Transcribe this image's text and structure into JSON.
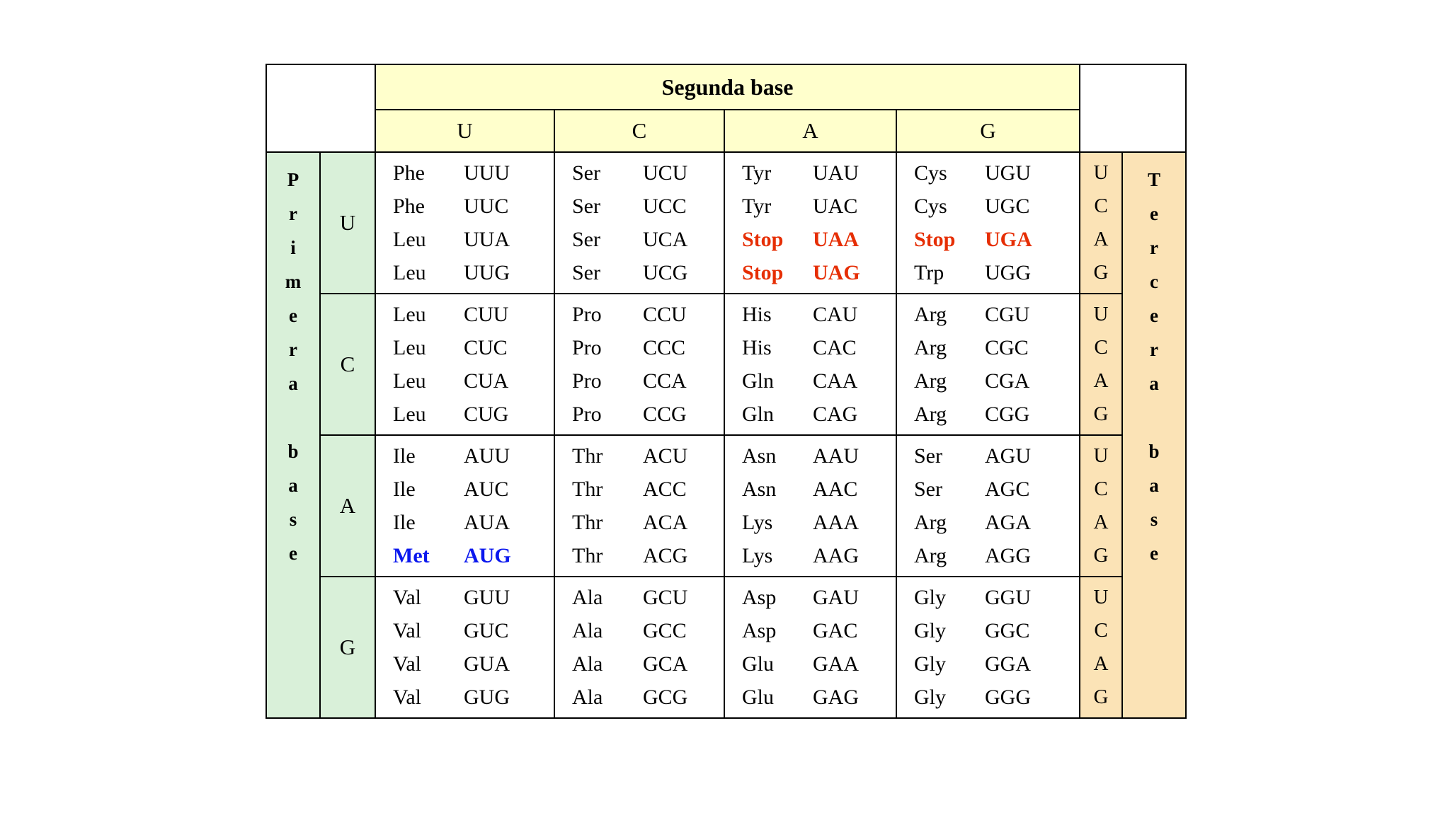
{
  "colors": {
    "header_bg": "#ffffcc",
    "first_base_bg": "#d9f0d9",
    "third_base_bg": "#fbe3b6",
    "stop": "#e62e04",
    "start": "#0b18ee",
    "border": "#000000",
    "text": "#000000"
  },
  "chart_data": {
    "type": "table",
    "column_group_label": "Segunda base",
    "row_group_label": "Primera base",
    "third_base_group_label": "Tercera base",
    "column_headers": [
      "U",
      "C",
      "A",
      "G"
    ],
    "row_headers": [
      "U",
      "C",
      "A",
      "G"
    ],
    "third_base_letters": [
      "U",
      "C",
      "A",
      "G"
    ],
    "rows": [
      {
        "first_base": "U",
        "cells": [
          {
            "second_base": "U",
            "lines": [
              {
                "aa": "Phe",
                "codon": "UUU",
                "style": "normal"
              },
              {
                "aa": "Phe",
                "codon": "UUC",
                "style": "normal"
              },
              {
                "aa": "Leu",
                "codon": "UUA",
                "style": "normal"
              },
              {
                "aa": "Leu",
                "codon": "UUG",
                "style": "normal"
              }
            ]
          },
          {
            "second_base": "C",
            "lines": [
              {
                "aa": "Ser",
                "codon": "UCU",
                "style": "normal"
              },
              {
                "aa": "Ser",
                "codon": "UCC",
                "style": "normal"
              },
              {
                "aa": "Ser",
                "codon": "UCA",
                "style": "normal"
              },
              {
                "aa": "Ser",
                "codon": "UCG",
                "style": "normal"
              }
            ]
          },
          {
            "second_base": "A",
            "lines": [
              {
                "aa": "Tyr",
                "codon": "UAU",
                "style": "normal"
              },
              {
                "aa": "Tyr",
                "codon": "UAC",
                "style": "normal"
              },
              {
                "aa": "Stop",
                "codon": "UAA",
                "style": "stop"
              },
              {
                "aa": "Stop",
                "codon": "UAG",
                "style": "stop"
              }
            ]
          },
          {
            "second_base": "G",
            "lines": [
              {
                "aa": "Cys",
                "codon": "UGU",
                "style": "normal"
              },
              {
                "aa": "Cys",
                "codon": "UGC",
                "style": "normal"
              },
              {
                "aa": "Stop",
                "codon": "UGA",
                "style": "stop"
              },
              {
                "aa": "Trp",
                "codon": "UGG",
                "style": "normal"
              }
            ]
          }
        ]
      },
      {
        "first_base": "C",
        "cells": [
          {
            "second_base": "U",
            "lines": [
              {
                "aa": "Leu",
                "codon": "CUU",
                "style": "normal"
              },
              {
                "aa": "Leu",
                "codon": "CUC",
                "style": "normal"
              },
              {
                "aa": "Leu",
                "codon": "CUA",
                "style": "normal"
              },
              {
                "aa": "Leu",
                "codon": "CUG",
                "style": "normal"
              }
            ]
          },
          {
            "second_base": "C",
            "lines": [
              {
                "aa": "Pro",
                "codon": "CCU",
                "style": "normal"
              },
              {
                "aa": "Pro",
                "codon": "CCC",
                "style": "normal"
              },
              {
                "aa": "Pro",
                "codon": "CCA",
                "style": "normal"
              },
              {
                "aa": "Pro",
                "codon": "CCG",
                "style": "normal"
              }
            ]
          },
          {
            "second_base": "A",
            "lines": [
              {
                "aa": "His",
                "codon": "CAU",
                "style": "normal"
              },
              {
                "aa": "His",
                "codon": "CAC",
                "style": "normal"
              },
              {
                "aa": "Gln",
                "codon": "CAA",
                "style": "normal"
              },
              {
                "aa": "Gln",
                "codon": "CAG",
                "style": "normal"
              }
            ]
          },
          {
            "second_base": "G",
            "lines": [
              {
                "aa": "Arg",
                "codon": "CGU",
                "style": "normal"
              },
              {
                "aa": "Arg",
                "codon": "CGC",
                "style": "normal"
              },
              {
                "aa": "Arg",
                "codon": "CGA",
                "style": "normal"
              },
              {
                "aa": "Arg",
                "codon": "CGG",
                "style": "normal"
              }
            ]
          }
        ]
      },
      {
        "first_base": "A",
        "cells": [
          {
            "second_base": "U",
            "lines": [
              {
                "aa": "Ile",
                "codon": "AUU",
                "style": "normal"
              },
              {
                "aa": "Ile",
                "codon": "AUC",
                "style": "normal"
              },
              {
                "aa": "Ile",
                "codon": "AUA",
                "style": "normal"
              },
              {
                "aa": "Met",
                "codon": "AUG",
                "style": "start"
              }
            ]
          },
          {
            "second_base": "C",
            "lines": [
              {
                "aa": "Thr",
                "codon": "ACU",
                "style": "normal"
              },
              {
                "aa": "Thr",
                "codon": "ACC",
                "style": "normal"
              },
              {
                "aa": "Thr",
                "codon": "ACA",
                "style": "normal"
              },
              {
                "aa": "Thr",
                "codon": "ACG",
                "style": "normal"
              }
            ]
          },
          {
            "second_base": "A",
            "lines": [
              {
                "aa": "Asn",
                "codon": "AAU",
                "style": "normal"
              },
              {
                "aa": "Asn",
                "codon": "AAC",
                "style": "normal"
              },
              {
                "aa": "Lys",
                "codon": "AAA",
                "style": "normal"
              },
              {
                "aa": "Lys",
                "codon": "AAG",
                "style": "normal"
              }
            ]
          },
          {
            "second_base": "G",
            "lines": [
              {
                "aa": "Ser",
                "codon": "AGU",
                "style": "normal"
              },
              {
                "aa": "Ser",
                "codon": "AGC",
                "style": "normal"
              },
              {
                "aa": "Arg",
                "codon": "AGA",
                "style": "normal"
              },
              {
                "aa": "Arg",
                "codon": "AGG",
                "style": "normal"
              }
            ]
          }
        ]
      },
      {
        "first_base": "G",
        "cells": [
          {
            "second_base": "U",
            "lines": [
              {
                "aa": "Val",
                "codon": "GUU",
                "style": "normal"
              },
              {
                "aa": "Val",
                "codon": "GUC",
                "style": "normal"
              },
              {
                "aa": "Val",
                "codon": "GUA",
                "style": "normal"
              },
              {
                "aa": "Val",
                "codon": "GUG",
                "style": "normal"
              }
            ]
          },
          {
            "second_base": "C",
            "lines": [
              {
                "aa": "Ala",
                "codon": "GCU",
                "style": "normal"
              },
              {
                "aa": "Ala",
                "codon": "GCC",
                "style": "normal"
              },
              {
                "aa": "Ala",
                "codon": "GCA",
                "style": "normal"
              },
              {
                "aa": "Ala",
                "codon": "GCG",
                "style": "normal"
              }
            ]
          },
          {
            "second_base": "A",
            "lines": [
              {
                "aa": "Asp",
                "codon": "GAU",
                "style": "normal"
              },
              {
                "aa": "Asp",
                "codon": "GAC",
                "style": "normal"
              },
              {
                "aa": "Glu",
                "codon": "GAA",
                "style": "normal"
              },
              {
                "aa": "Glu",
                "codon": "GAG",
                "style": "normal"
              }
            ]
          },
          {
            "second_base": "G",
            "lines": [
              {
                "aa": "Gly",
                "codon": "GGU",
                "style": "normal"
              },
              {
                "aa": "Gly",
                "codon": "GGC",
                "style": "normal"
              },
              {
                "aa": "Gly",
                "codon": "GGA",
                "style": "normal"
              },
              {
                "aa": "Gly",
                "codon": "GGG",
                "style": "normal"
              }
            ]
          }
        ]
      }
    ]
  }
}
